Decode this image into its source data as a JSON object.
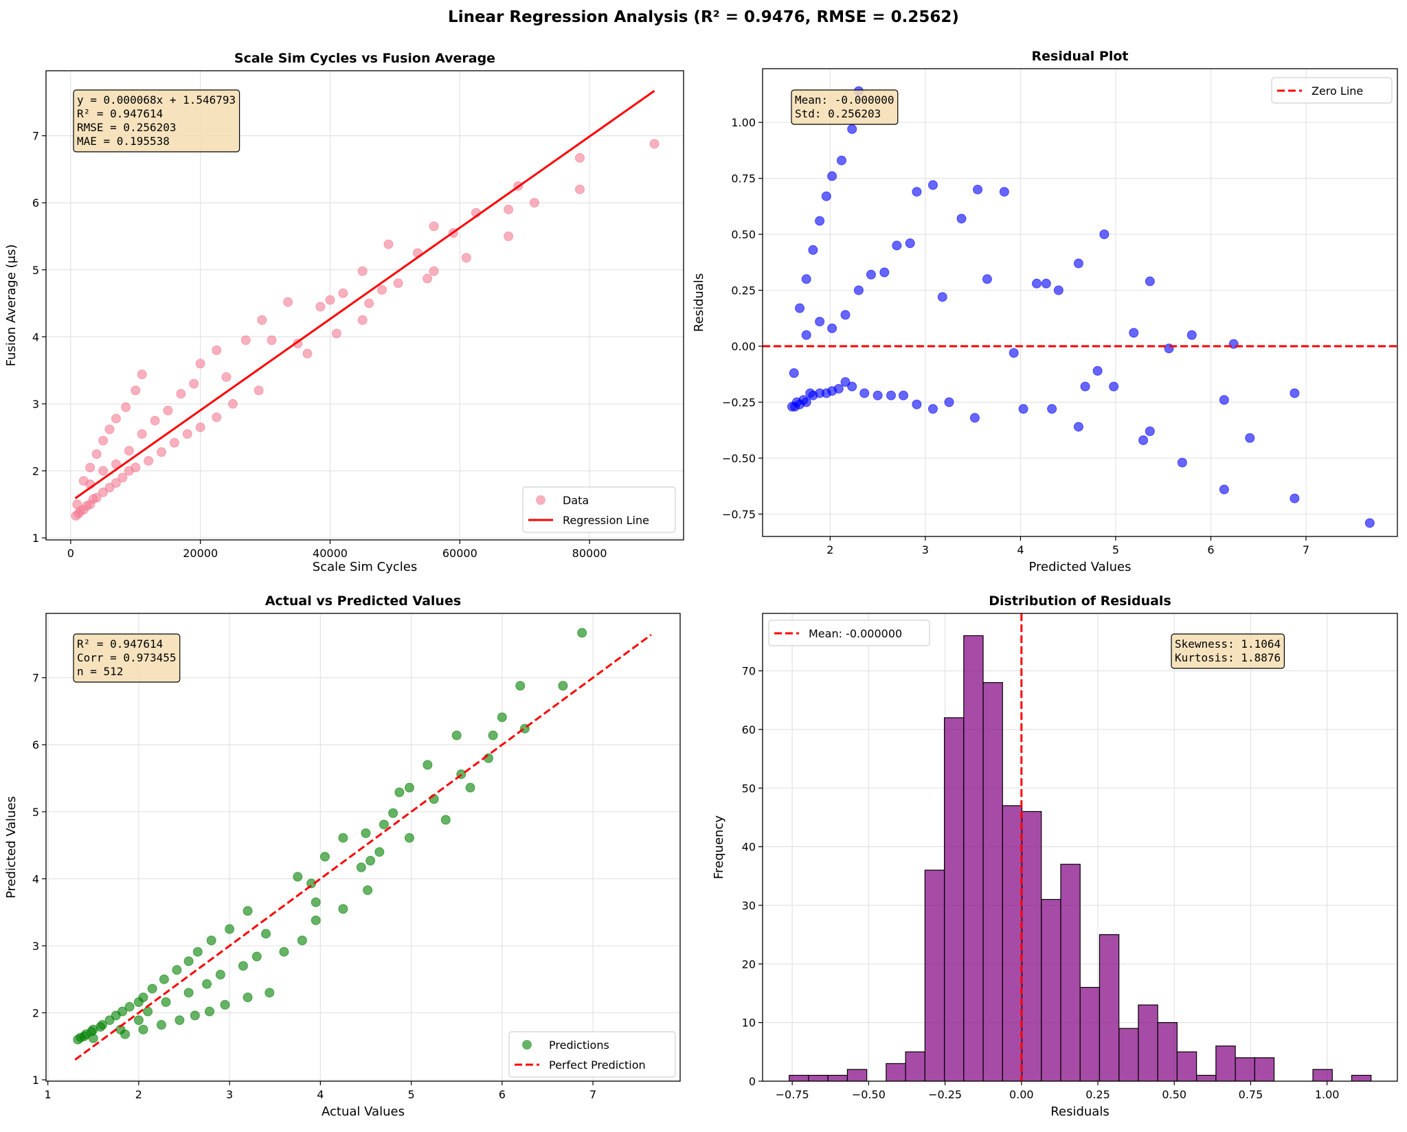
{
  "suptitle": "Linear Regression Analysis (R² = 0.9476, RMSE = 0.2562)",
  "chart_data": [
    {
      "type": "scatter",
      "title": "Scale Sim Cycles vs Fusion Average",
      "xlabel": "Scale Sim Cycles",
      "ylabel": "Fusion Average (μs)",
      "xlim": [
        -3800,
        94500
      ],
      "ylim": [
        0.97,
        7.97
      ],
      "xticks": [
        "0",
        "20000",
        "40000",
        "60000",
        "80000"
      ],
      "yticks": [
        "1",
        "2",
        "3",
        "4",
        "5",
        "6",
        "7"
      ],
      "grid": true,
      "legend": "lower right",
      "annotation": [
        "y = 0.000068x + 1.546793",
        "R² = 0.947614",
        "RMSE = 0.256203",
        "MAE = 0.195538"
      ],
      "series": [
        {
          "name": "Data",
          "kind": "scatter",
          "color": "#f37b93",
          "points": [
            [
              800,
              1.33
            ],
            [
              1200,
              1.36
            ],
            [
              1500,
              1.4
            ],
            [
              2000,
              1.42
            ],
            [
              2500,
              1.48
            ],
            [
              3000,
              1.5
            ],
            [
              3500,
              1.58
            ],
            [
              4000,
              1.6
            ],
            [
              5000,
              1.68
            ],
            [
              6000,
              1.75
            ],
            [
              7000,
              1.82
            ],
            [
              8000,
              1.9
            ],
            [
              9000,
              2.0
            ],
            [
              10000,
              2.05
            ],
            [
              12000,
              2.15
            ],
            [
              14000,
              2.28
            ],
            [
              16000,
              2.42
            ],
            [
              18000,
              2.55
            ],
            [
              20000,
              2.65
            ],
            [
              22500,
              2.8
            ],
            [
              25000,
              3.0
            ],
            [
              2000,
              1.85
            ],
            [
              3000,
              2.05
            ],
            [
              4000,
              2.25
            ],
            [
              5000,
              2.45
            ],
            [
              6000,
              2.62
            ],
            [
              7000,
              2.78
            ],
            [
              8500,
              2.95
            ],
            [
              10000,
              3.2
            ],
            [
              11000,
              3.44
            ],
            [
              1000,
              1.5
            ],
            [
              3000,
              1.8
            ],
            [
              5000,
              2.0
            ],
            [
              7000,
              2.1
            ],
            [
              9000,
              2.3
            ],
            [
              11000,
              2.55
            ],
            [
              13000,
              2.75
            ],
            [
              15000,
              2.9
            ],
            [
              17000,
              3.15
            ],
            [
              19000,
              3.3
            ],
            [
              20000,
              3.6
            ],
            [
              22500,
              3.8
            ],
            [
              24000,
              3.4
            ],
            [
              27000,
              3.95
            ],
            [
              29500,
              4.25
            ],
            [
              29000,
              3.2
            ],
            [
              31000,
              3.95
            ],
            [
              33500,
              4.52
            ],
            [
              35000,
              3.9
            ],
            [
              36500,
              3.75
            ],
            [
              38500,
              4.45
            ],
            [
              40000,
              4.55
            ],
            [
              41000,
              4.05
            ],
            [
              42000,
              4.65
            ],
            [
              45000,
              4.98
            ],
            [
              45000,
              4.25
            ],
            [
              46000,
              4.5
            ],
            [
              48000,
              4.7
            ],
            [
              49000,
              5.38
            ],
            [
              50500,
              4.8
            ],
            [
              53500,
              5.25
            ],
            [
              55000,
              4.87
            ],
            [
              56000,
              5.65
            ],
            [
              56000,
              4.98
            ],
            [
              59000,
              5.55
            ],
            [
              61000,
              5.18
            ],
            [
              62500,
              5.85
            ],
            [
              67500,
              5.5
            ],
            [
              67500,
              5.9
            ],
            [
              69000,
              6.25
            ],
            [
              71500,
              6.0
            ],
            [
              78500,
              6.67
            ],
            [
              78500,
              6.2
            ],
            [
              90000,
              6.88
            ]
          ]
        },
        {
          "name": "Regression Line",
          "kind": "line",
          "color": "#ff0000",
          "points": [
            [
              700,
              1.59
            ],
            [
              90000,
              7.67
            ]
          ]
        }
      ]
    },
    {
      "type": "scatter",
      "title": "Residual Plot",
      "xlabel": "Predicted Values",
      "ylabel": "Residuals",
      "xlim": [
        1.29,
        7.96
      ],
      "ylim": [
        -0.85,
        1.24
      ],
      "xticks": [
        "2",
        "3",
        "4",
        "5",
        "6",
        "7"
      ],
      "yticks": [
        "−0.75",
        "−0.50",
        "−0.25",
        "0.00",
        "0.25",
        "0.50",
        "0.75",
        "1.00"
      ],
      "grid": true,
      "legend": "upper right",
      "annotation": [
        "Mean: -0.000000",
        "Std: 0.256203"
      ],
      "series": [
        {
          "kind": "scatter",
          "color": "#0000ff",
          "points": [
            [
              1.6,
              -0.27
            ],
            [
              1.63,
              -0.27
            ],
            [
              1.65,
              -0.25
            ],
            [
              1.68,
              -0.26
            ],
            [
              1.72,
              -0.24
            ],
            [
              1.75,
              -0.25
            ],
            [
              1.79,
              -0.21
            ],
            [
              1.82,
              -0.22
            ],
            [
              1.89,
              -0.21
            ],
            [
              1.96,
              -0.21
            ],
            [
              2.02,
              -0.2
            ],
            [
              2.09,
              -0.19
            ],
            [
              2.16,
              -0.16
            ],
            [
              2.23,
              -0.18
            ],
            [
              2.36,
              -0.21
            ],
            [
              2.5,
              -0.22
            ],
            [
              2.64,
              -0.22
            ],
            [
              2.77,
              -0.22
            ],
            [
              2.91,
              -0.26
            ],
            [
              3.08,
              -0.28
            ],
            [
              3.25,
              -0.25
            ],
            [
              1.68,
              0.17
            ],
            [
              1.75,
              0.3
            ],
            [
              1.82,
              0.43
            ],
            [
              1.89,
              0.56
            ],
            [
              1.96,
              0.67
            ],
            [
              2.02,
              0.76
            ],
            [
              2.12,
              0.83
            ],
            [
              2.23,
              0.97
            ],
            [
              2.3,
              1.14
            ],
            [
              1.62,
              -0.12
            ],
            [
              1.75,
              0.05
            ],
            [
              1.89,
              0.11
            ],
            [
              2.02,
              0.08
            ],
            [
              2.16,
              0.14
            ],
            [
              2.3,
              0.25
            ],
            [
              2.43,
              0.32
            ],
            [
              2.57,
              0.33
            ],
            [
              2.7,
              0.45
            ],
            [
              2.84,
              0.46
            ],
            [
              2.91,
              0.69
            ],
            [
              3.08,
              0.72
            ],
            [
              3.18,
              0.22
            ],
            [
              3.38,
              0.57
            ],
            [
              3.55,
              0.7
            ],
            [
              3.52,
              -0.32
            ],
            [
              3.65,
              0.3
            ],
            [
              3.83,
              0.69
            ],
            [
              3.93,
              -0.03
            ],
            [
              4.03,
              -0.28
            ],
            [
              4.17,
              0.28
            ],
            [
              4.27,
              0.28
            ],
            [
              4.33,
              -0.28
            ],
            [
              4.4,
              0.25
            ],
            [
              4.61,
              0.37
            ],
            [
              4.61,
              -0.36
            ],
            [
              4.68,
              -0.18
            ],
            [
              4.81,
              -0.11
            ],
            [
              4.88,
              0.5
            ],
            [
              4.98,
              -0.18
            ],
            [
              5.19,
              0.06
            ],
            [
              5.29,
              -0.42
            ],
            [
              5.36,
              0.29
            ],
            [
              5.36,
              -0.38
            ],
            [
              5.56,
              -0.01
            ],
            [
              5.7,
              -0.52
            ],
            [
              5.8,
              0.05
            ],
            [
              6.14,
              -0.64
            ],
            [
              6.14,
              -0.24
            ],
            [
              6.24,
              0.01
            ],
            [
              6.41,
              -0.41
            ],
            [
              6.88,
              -0.21
            ],
            [
              6.88,
              -0.68
            ],
            [
              7.67,
              -0.79
            ]
          ]
        },
        {
          "name": "Zero Line",
          "kind": "hline",
          "color": "#ff0000",
          "value": 0
        }
      ]
    },
    {
      "type": "scatter",
      "title": "Actual vs Predicted Values",
      "xlabel": "Actual Values",
      "ylabel": "Predicted Values",
      "xlim": [
        0.98,
        7.96
      ],
      "ylim": [
        0.98,
        7.96
      ],
      "xticks": [
        "1",
        "2",
        "3",
        "4",
        "5",
        "6",
        "7"
      ],
      "yticks": [
        "1",
        "2",
        "3",
        "4",
        "5",
        "6",
        "7"
      ],
      "grid": true,
      "legend": "lower right",
      "annotation": [
        "R² = 0.947614",
        "Corr = 0.973455",
        "n = 512"
      ],
      "series": [
        {
          "name": "Predictions",
          "kind": "scatter",
          "color": "#008000",
          "points": [
            [
              1.33,
              1.6
            ],
            [
              1.36,
              1.63
            ],
            [
              1.4,
              1.65
            ],
            [
              1.42,
              1.68
            ],
            [
              1.48,
              1.72
            ],
            [
              1.5,
              1.75
            ],
            [
              1.58,
              1.79
            ],
            [
              1.6,
              1.82
            ],
            [
              1.68,
              1.89
            ],
            [
              1.75,
              1.96
            ],
            [
              1.82,
              2.02
            ],
            [
              1.9,
              2.09
            ],
            [
              2.0,
              2.16
            ],
            [
              2.05,
              2.23
            ],
            [
              2.15,
              2.36
            ],
            [
              2.28,
              2.5
            ],
            [
              2.42,
              2.64
            ],
            [
              2.55,
              2.77
            ],
            [
              2.65,
              2.91
            ],
            [
              2.8,
              3.08
            ],
            [
              3.0,
              3.25
            ],
            [
              1.85,
              1.68
            ],
            [
              2.05,
              1.75
            ],
            [
              2.25,
              1.82
            ],
            [
              2.45,
              1.89
            ],
            [
              2.62,
              1.96
            ],
            [
              2.78,
              2.02
            ],
            [
              2.95,
              2.12
            ],
            [
              3.2,
              2.23
            ],
            [
              3.44,
              2.3
            ],
            [
              1.5,
              1.62
            ],
            [
              1.8,
              1.75
            ],
            [
              2.0,
              1.89
            ],
            [
              2.1,
              2.02
            ],
            [
              2.3,
              2.16
            ],
            [
              2.55,
              2.3
            ],
            [
              2.75,
              2.43
            ],
            [
              2.9,
              2.57
            ],
            [
              3.15,
              2.7
            ],
            [
              3.3,
              2.84
            ],
            [
              3.6,
              2.91
            ],
            [
              3.8,
              3.08
            ],
            [
              3.4,
              3.18
            ],
            [
              3.95,
              3.38
            ],
            [
              4.25,
              3.55
            ],
            [
              3.2,
              3.52
            ],
            [
              3.95,
              3.65
            ],
            [
              4.52,
              3.83
            ],
            [
              3.9,
              3.93
            ],
            [
              3.75,
              4.03
            ],
            [
              4.45,
              4.17
            ],
            [
              4.55,
              4.27
            ],
            [
              4.05,
              4.33
            ],
            [
              4.65,
              4.4
            ],
            [
              4.98,
              4.61
            ],
            [
              4.25,
              4.61
            ],
            [
              4.5,
              4.68
            ],
            [
              4.7,
              4.81
            ],
            [
              5.38,
              4.88
            ],
            [
              4.8,
              4.98
            ],
            [
              5.25,
              5.19
            ],
            [
              4.87,
              5.29
            ],
            [
              5.65,
              5.36
            ],
            [
              4.98,
              5.36
            ],
            [
              5.55,
              5.56
            ],
            [
              5.18,
              5.7
            ],
            [
              5.85,
              5.8
            ],
            [
              5.5,
              6.14
            ],
            [
              5.9,
              6.14
            ],
            [
              6.25,
              6.24
            ],
            [
              6.0,
              6.41
            ],
            [
              6.67,
              6.88
            ],
            [
              6.2,
              6.88
            ],
            [
              6.88,
              7.67
            ]
          ]
        },
        {
          "name": "Perfect Prediction",
          "kind": "dashed",
          "color": "#ff0000",
          "points": [
            [
              1.3,
              1.3
            ],
            [
              7.64,
              7.64
            ]
          ]
        }
      ]
    },
    {
      "type": "bar",
      "title": "Distribution of Residuals",
      "xlabel": "Residuals",
      "ylabel": "Frequency",
      "xlim": [
        -0.847,
        1.23
      ],
      "ylim": [
        0,
        79.8
      ],
      "xticks": [
        "−0.75",
        "−0.50",
        "−0.25",
        "0.00",
        "0.25",
        "0.50",
        "0.75",
        "1.00"
      ],
      "yticks": [
        "0",
        "10",
        "20",
        "30",
        "40",
        "50",
        "60",
        "70"
      ],
      "grid": true,
      "legend": "upper left",
      "annotation": [
        "Skewness: 1.1064",
        "Kurtosis: 1.8876"
      ],
      "histogram": {
        "bin_range": [
          -0.76,
          1.144
        ],
        "counts": [
          1,
          1,
          1,
          2,
          0,
          3,
          5,
          36,
          62,
          76,
          68,
          47,
          46,
          31,
          37,
          16,
          25,
          9,
          13,
          10,
          5,
          1,
          6,
          4,
          4,
          0,
          0,
          2,
          0,
          1
        ],
        "color": "#800080"
      },
      "series": [
        {
          "name": "Mean: -0.000000",
          "kind": "vline",
          "color": "#ff0000",
          "value": 0
        }
      ]
    }
  ]
}
